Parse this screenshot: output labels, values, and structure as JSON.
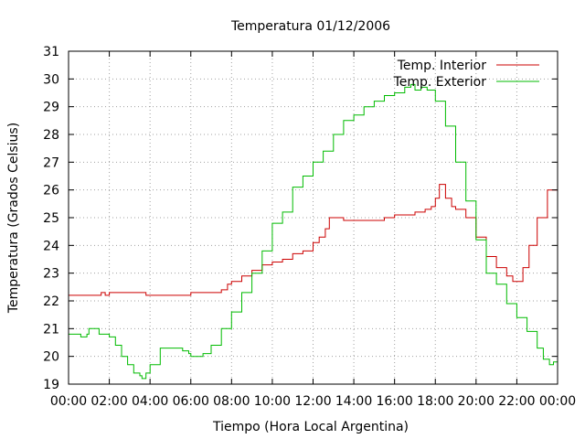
{
  "chart_data": {
    "type": "line",
    "title": "Temperatura 01/12/2006",
    "xlabel": "Tiempo (Hora Local Argentina)",
    "ylabel": "Temperatura (Grados Celsius)",
    "xlim": [
      0,
      24
    ],
    "ylim": [
      19,
      31
    ],
    "x_ticks": [
      0,
      2,
      4,
      6,
      8,
      10,
      12,
      14,
      16,
      18,
      20,
      22,
      24
    ],
    "x_tick_labels": [
      "00:00",
      "02:00",
      "04:00",
      "06:00",
      "08:00",
      "10:00",
      "12:00",
      "14:00",
      "16:00",
      "18:00",
      "20:00",
      "22:00",
      "00:00"
    ],
    "y_ticks": [
      19,
      20,
      21,
      22,
      23,
      24,
      25,
      26,
      27,
      28,
      29,
      30,
      31
    ],
    "grid": true,
    "legend_position": "top-right",
    "series": [
      {
        "name": "Temp. Interior",
        "color": "#cc0000",
        "x": [
          0,
          0.5,
          1,
          1.4,
          1.6,
          1.8,
          2,
          2.5,
          3,
          3.5,
          3.8,
          4,
          4.5,
          5,
          5.5,
          6,
          6.5,
          7,
          7.5,
          7.8,
          8,
          8.5,
          9,
          9.5,
          10,
          10.5,
          11,
          11.5,
          12,
          12.3,
          12.6,
          12.8,
          13,
          13.5,
          14,
          14.5,
          15,
          15.5,
          16,
          16.5,
          17,
          17.5,
          17.8,
          18,
          18.2,
          18.5,
          18.8,
          19,
          19.5,
          20,
          20.5,
          21,
          21.5,
          21.8,
          22,
          22.3,
          22.6,
          23,
          23.5,
          24
        ],
        "y": [
          22.2,
          22.2,
          22.2,
          22.2,
          22.3,
          22.2,
          22.3,
          22.3,
          22.3,
          22.3,
          22.2,
          22.2,
          22.2,
          22.2,
          22.2,
          22.3,
          22.3,
          22.3,
          22.4,
          22.6,
          22.7,
          22.9,
          23.1,
          23.3,
          23.4,
          23.5,
          23.7,
          23.8,
          24.1,
          24.3,
          24.6,
          25.0,
          25.0,
          24.9,
          24.9,
          24.9,
          24.9,
          25.0,
          25.1,
          25.1,
          25.2,
          25.3,
          25.4,
          25.7,
          26.2,
          25.7,
          25.4,
          25.3,
          25.0,
          24.3,
          23.6,
          23.2,
          22.9,
          22.7,
          22.7,
          23.2,
          24.0,
          25.0,
          26.0,
          26.8
        ]
      },
      {
        "name": "Temp. Exterior",
        "color": "#00bb00",
        "x": [
          0,
          0.3,
          0.6,
          0.9,
          1,
          1.5,
          2,
          2.3,
          2.6,
          2.9,
          3.2,
          3.5,
          3.6,
          3.8,
          4,
          4.5,
          5,
          5.3,
          5.6,
          5.9,
          6,
          6.3,
          6.6,
          7,
          7.5,
          8,
          8.5,
          9,
          9.5,
          10,
          10.5,
          11,
          11.5,
          12,
          12.5,
          13,
          13.5,
          14,
          14.5,
          15,
          15.5,
          16,
          16.5,
          16.8,
          17,
          17.3,
          17.6,
          18,
          18.5,
          19,
          19.5,
          20,
          20.5,
          21,
          21.5,
          22,
          22.5,
          23,
          23.3,
          23.6,
          23.8,
          24
        ],
        "y": [
          20.8,
          20.8,
          20.7,
          20.8,
          21.0,
          20.8,
          20.7,
          20.4,
          20.0,
          19.7,
          19.4,
          19.3,
          19.2,
          19.4,
          19.7,
          20.3,
          20.3,
          20.3,
          20.2,
          20.1,
          20.0,
          20.0,
          20.1,
          20.4,
          21.0,
          21.6,
          22.3,
          23.0,
          23.8,
          24.8,
          25.2,
          26.1,
          26.5,
          27.0,
          27.4,
          28.0,
          28.5,
          28.7,
          29.0,
          29.2,
          29.4,
          29.5,
          29.7,
          29.8,
          29.6,
          29.7,
          29.6,
          29.2,
          28.3,
          27.0,
          25.6,
          24.2,
          23.0,
          22.6,
          21.9,
          21.4,
          20.9,
          20.3,
          19.9,
          19.7,
          19.8,
          20.0
        ]
      }
    ]
  }
}
